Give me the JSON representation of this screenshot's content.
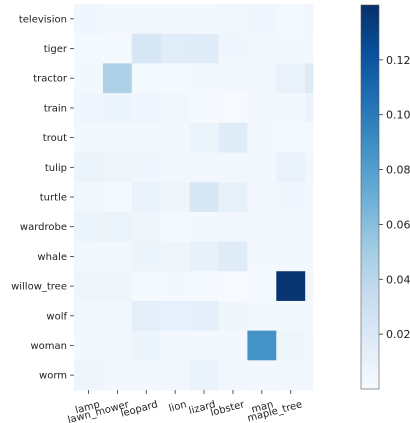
{
  "chart_data": {
    "type": "heatmap",
    "title": "",
    "xlabel": "",
    "ylabel": "",
    "x_categories": [
      "lamp",
      "lawn_mower",
      "leopard",
      "lion",
      "lizard",
      "lobster",
      "man",
      "maple_tree"
    ],
    "x_tick_labels": [
      "lamp",
      "lawn_mower",
      "leopard",
      "lion",
      "lizard",
      "lobster",
      "man",
      "maple_tree"
    ],
    "y_categories": [
      "television",
      "tiger",
      "tractor",
      "train",
      "trout",
      "tulip",
      "turtle",
      "wardrobe",
      "whale",
      "willow_tree",
      "wolf",
      "woman",
      "worm"
    ],
    "y_tick_labels": [
      "television",
      "tiger",
      "tractor",
      "train",
      "trout",
      "tulip",
      "turtle",
      "wardrobe",
      "whale",
      "willow_tree",
      "wolf",
      "woman",
      "worm"
    ],
    "columns": [
      {
        "name": "lamp",
        "labeled": true
      },
      {
        "name": "lawn_mower",
        "labeled": true
      },
      {
        "name": "leopard",
        "labeled": true
      },
      {
        "name": "lion",
        "labeled": true
      },
      {
        "name": "lizard",
        "labeled": true
      },
      {
        "name": "lobster",
        "labeled": true
      },
      {
        "name": "man",
        "labeled": true
      },
      {
        "name": "maple_tree",
        "labeled": true
      },
      {
        "name": "",
        "labeled": false
      }
    ],
    "values": [
      [
        0.005,
        0.003,
        0.003,
        0.003,
        0.003,
        0.004,
        0.005,
        0.002,
        0.004
      ],
      [
        0.002,
        0.002,
        0.022,
        0.016,
        0.017,
        0.005,
        0.003,
        0.003,
        0.003
      ],
      [
        0.003,
        0.045,
        0.002,
        0.002,
        0.003,
        0.003,
        0.004,
        0.01,
        0.018
      ],
      [
        0.005,
        0.007,
        0.005,
        0.004,
        0.002,
        0.001,
        0.003,
        0.003,
        0.008
      ],
      [
        0.003,
        0.003,
        0.003,
        0.003,
        0.008,
        0.017,
        0.003,
        0.002,
        0.003
      ],
      [
        0.008,
        0.006,
        0.005,
        0.003,
        0.004,
        0.004,
        0.003,
        0.01,
        0.004
      ],
      [
        0.004,
        0.002,
        0.009,
        0.006,
        0.022,
        0.011,
        0.004,
        0.005,
        0.003
      ],
      [
        0.008,
        0.008,
        0.006,
        0.002,
        0.003,
        0.004,
        0.003,
        0.004,
        0.003
      ],
      [
        0.004,
        0.003,
        0.007,
        0.006,
        0.011,
        0.017,
        0.003,
        0.004,
        0.003
      ],
      [
        0.006,
        0.006,
        0.002,
        0.003,
        0.002,
        0.001,
        0.002,
        0.138,
        0.004
      ],
      [
        0.004,
        0.004,
        0.014,
        0.012,
        0.013,
        0.006,
        0.003,
        0.003,
        0.003
      ],
      [
        0.003,
        0.004,
        0.007,
        0.003,
        0.003,
        0.003,
        0.086,
        0.006,
        0.004
      ],
      [
        0.006,
        0.003,
        0.003,
        0.004,
        0.009,
        0.004,
        0.003,
        0.004,
        0.004
      ]
    ],
    "colormap": "Blues",
    "colormap_stops": [
      "#f7fbff",
      "#deebf7",
      "#c6dbef",
      "#9ecae1",
      "#6baed6",
      "#4292c6",
      "#2171b5",
      "#08519c",
      "#08306b"
    ],
    "value_range": [
      0,
      0.14
    ],
    "colorbar_ticks": [
      0.02,
      0.04,
      0.06,
      0.08,
      0.1,
      0.12
    ],
    "colorbar_tick_labels": [
      "0.02",
      "0.04",
      "0.06",
      "0.08",
      "0.10",
      "0.12"
    ],
    "x_tick_rotation_deg": 15,
    "grid": false,
    "colorbar_placement": "right"
  }
}
